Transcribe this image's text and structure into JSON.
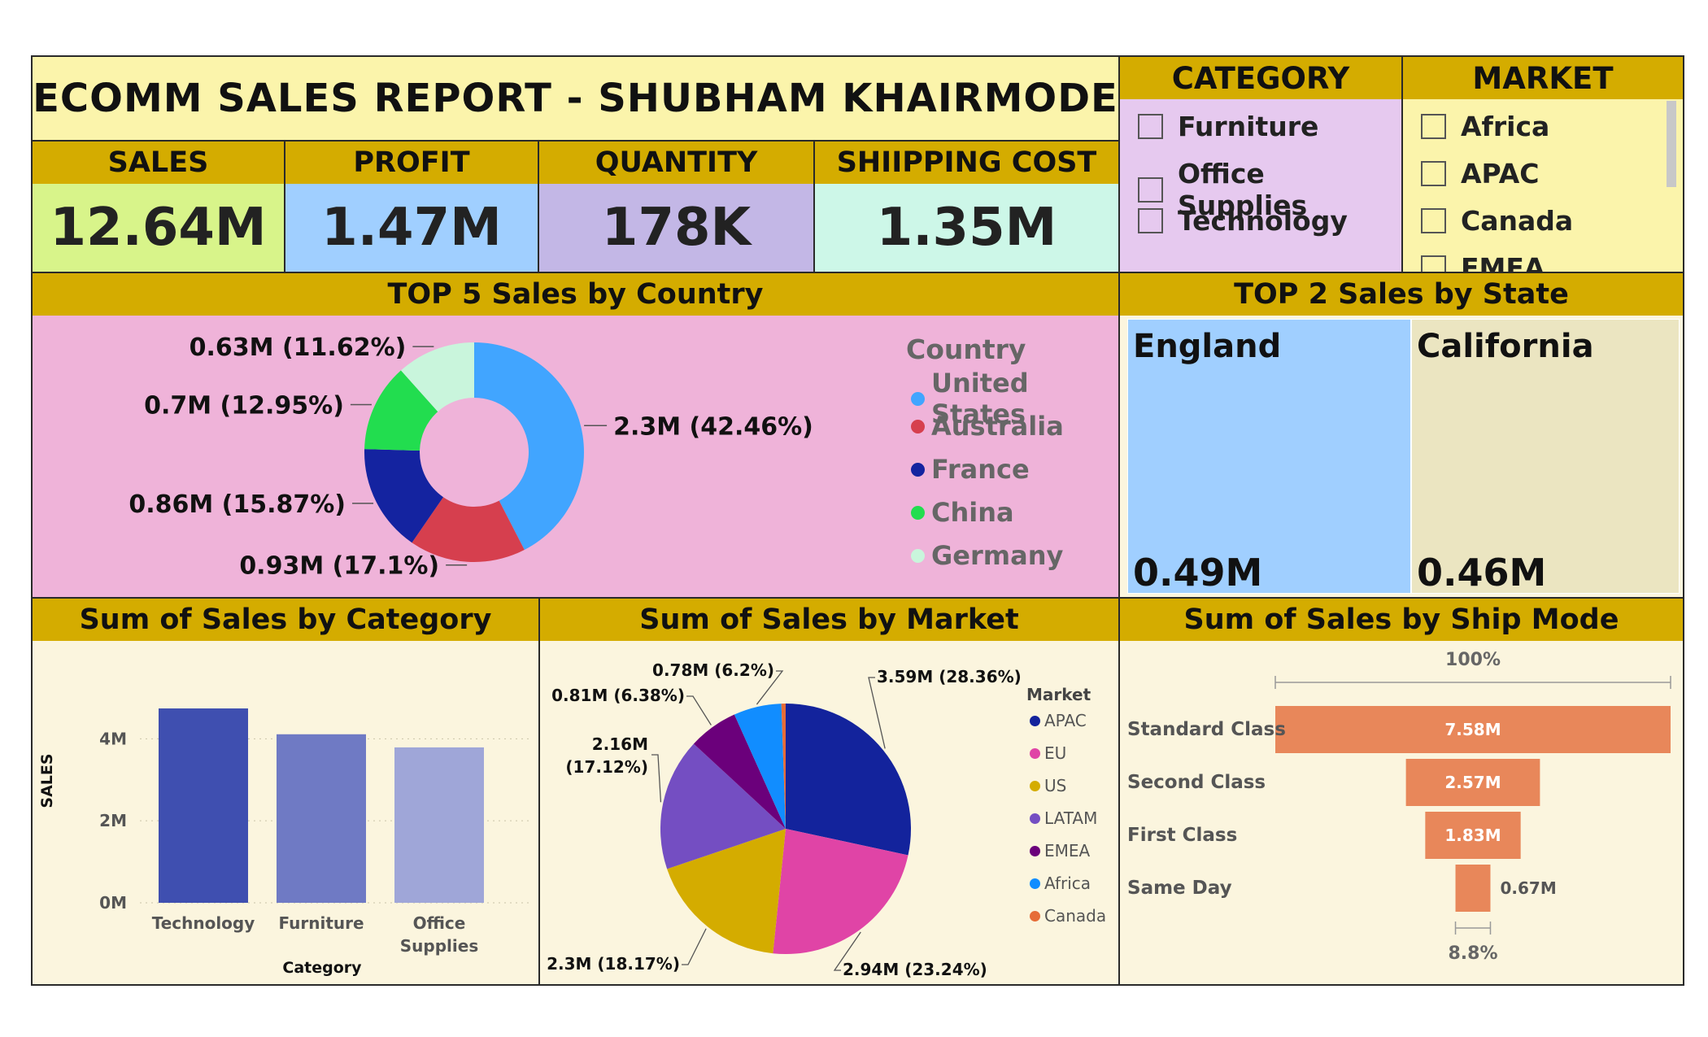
{
  "title": "ECOMM SALES REPORT - SHUBHAM KHAIRMODE",
  "kpis": [
    {
      "label": "SALES",
      "value": "12.64M",
      "color": "#d8f48a"
    },
    {
      "label": "PROFIT",
      "value": "1.47M",
      "color": "#a0cfff"
    },
    {
      "label": "QUANTITY",
      "value": "178K",
      "color": "#c3b7e6"
    },
    {
      "label": "SHIIPPING COST",
      "value": "1.35M",
      "color": "#cdf7e8"
    }
  ],
  "category_slicer": {
    "title": "CATEGORY",
    "items": [
      "Furniture",
      "Office Supplies",
      "Technology"
    ]
  },
  "market_slicer": {
    "title": "MARKET",
    "items": [
      "Africa",
      "APAC",
      "Canada",
      "EMEA"
    ]
  },
  "colors": {
    "header": "#d4ac00",
    "title_bg": "#fbf4ab",
    "donut_bg": "#efb3d9",
    "cream": "#fbf5de",
    "category_bg": "#e6c9ef",
    "market_bg": "#fbf4ab"
  },
  "chart_data": [
    {
      "type": "pie",
      "title": "TOP 5 Sales by Country",
      "legend_title": "Country",
      "categories": [
        "United States",
        "Australia",
        "France",
        "China",
        "Germany"
      ],
      "values": [
        2.3,
        0.93,
        0.86,
        0.7,
        0.63
      ],
      "labels": [
        "2.3M (42.46%)",
        "0.93M (17.1%)",
        "0.86M (15.87%)",
        "0.7M (12.95%)",
        "0.63M (11.62%)"
      ],
      "colors": [
        "#41a5ff",
        "#d63f4e",
        "#1423a0",
        "#22dd4f",
        "#c9f5dc"
      ]
    },
    {
      "type": "treemap",
      "title": "TOP 2 Sales by State",
      "categories": [
        "England",
        "California"
      ],
      "labels": [
        "0.49M",
        "0.46M"
      ],
      "values": [
        0.49,
        0.46
      ],
      "colors": [
        "#a0cfff",
        "#ebe5c1"
      ]
    },
    {
      "type": "bar",
      "title": "Sum of Sales by Category",
      "categories": [
        "Technology",
        "Furniture",
        "Office Supplies"
      ],
      "values": [
        4.74,
        4.11,
        3.79
      ],
      "xlabel": "Category",
      "ylabel": "SALES",
      "yticks": [
        "0M",
        "2M",
        "4M"
      ],
      "ylim": [
        0,
        4.8
      ],
      "colors": [
        "#3f4fb0",
        "#6f7ac4",
        "#9fa6d8"
      ]
    },
    {
      "type": "pie",
      "title": "Sum of Sales by Market",
      "legend_title": "Market",
      "categories": [
        "APAC",
        "EU",
        "US",
        "LATAM",
        "EMEA",
        "Africa",
        "Canada"
      ],
      "values": [
        3.59,
        2.94,
        2.3,
        2.16,
        0.81,
        0.78,
        0.07
      ],
      "labels": [
        "3.59M (28.36%)",
        "2.94M (23.24%)",
        "2.3M (18.17%)",
        "2.16M (17.12%)",
        "0.81M (6.38%)",
        "0.78M (6.2%)",
        ""
      ],
      "colors": [
        "#13239c",
        "#e044a6",
        "#d4ac00",
        "#744ec2",
        "#6b007b",
        "#118dff",
        "#e66c37"
      ]
    },
    {
      "type": "funnel",
      "title": "Sum of Sales by Ship Mode",
      "categories": [
        "Standard Class",
        "Second Class",
        "First Class",
        "Same Day"
      ],
      "values": [
        7.58,
        2.57,
        1.83,
        0.67
      ],
      "labels": [
        "7.58M",
        "2.57M",
        "1.83M",
        "0.67M"
      ],
      "top_pct": "100%",
      "bottom_pct": "8.8%",
      "color": "#e8875a"
    }
  ]
}
